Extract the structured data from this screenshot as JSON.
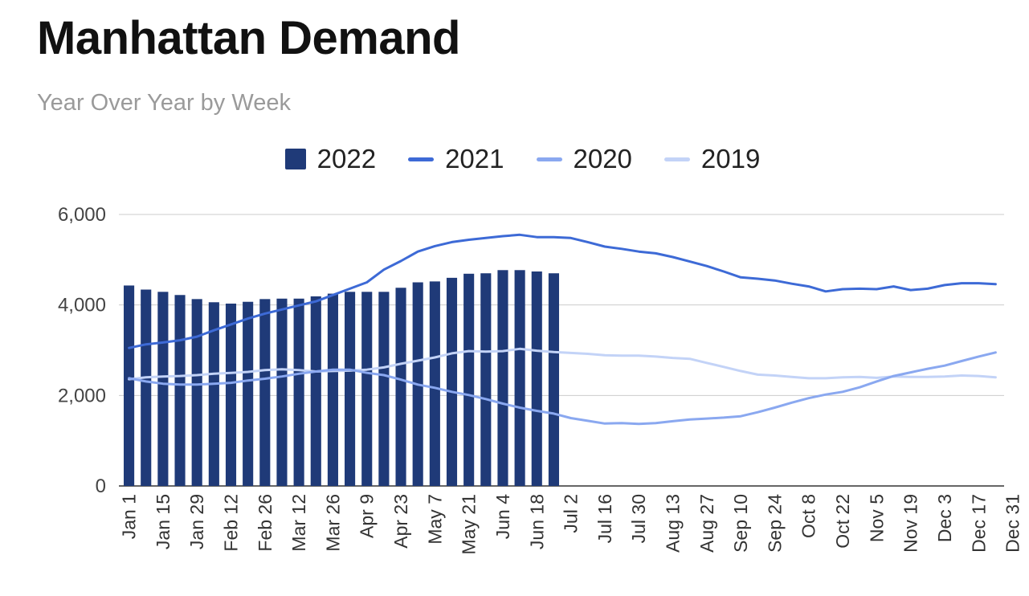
{
  "chart_data": {
    "type": "bar",
    "title": "Manhattan Demand",
    "subtitle": "Year Over Year by Week",
    "ylim": [
      0,
      6000
    ],
    "y_ticks": [
      "0",
      "2,000",
      "4,000",
      "6,000"
    ],
    "grid": true,
    "legend_position": "top-center",
    "tick_labels": [
      "Jan 1",
      "Jan 15",
      "Jan 29",
      "Feb 12",
      "Feb 26",
      "Mar 12",
      "Mar 26",
      "Apr 9",
      "Apr 23",
      "May 7",
      "May 21",
      "Jun 4",
      "Jun 18",
      "Jul 2",
      "Jul 16",
      "Jul 30",
      "Aug 13",
      "Aug 27",
      "Sep 10",
      "Sep 24",
      "Oct 8",
      "Oct 22",
      "Nov 5",
      "Nov 19",
      "Dec 3",
      "Dec 17",
      "Dec 31"
    ],
    "series": [
      {
        "name": "2022",
        "kind": "bar",
        "color": "#1f3a78",
        "values": [
          4430,
          4340,
          4290,
          4220,
          4130,
          4060,
          4030,
          4070,
          4130,
          4140,
          4140,
          4190,
          4250,
          4290,
          4290,
          4290,
          4380,
          4500,
          4520,
          4600,
          4690,
          4700,
          4770,
          4770,
          4740,
          4700
        ]
      },
      {
        "name": "2021",
        "kind": "line",
        "color": "#3d6ad6",
        "values": [
          3050,
          3130,
          3170,
          3220,
          3300,
          3440,
          3570,
          3700,
          3810,
          3900,
          3990,
          4080,
          4220,
          4360,
          4500,
          4780,
          4970,
          5180,
          5300,
          5390,
          5440,
          5480,
          5520,
          5550,
          5500,
          5500,
          5480,
          5390,
          5290,
          5240,
          5180,
          5140,
          5060,
          4960,
          4860,
          4740,
          4610,
          4580,
          4540,
          4470,
          4410,
          4300,
          4350,
          4360,
          4350,
          4410,
          4330,
          4360,
          4440,
          4480,
          4480,
          4460
        ]
      },
      {
        "name": "2020",
        "kind": "line",
        "color": "#8aa8f0",
        "values": [
          2380,
          2310,
          2260,
          2240,
          2240,
          2260,
          2280,
          2330,
          2370,
          2420,
          2480,
          2530,
          2570,
          2570,
          2500,
          2450,
          2350,
          2240,
          2170,
          2080,
          2010,
          1920,
          1820,
          1730,
          1660,
          1600,
          1500,
          1440,
          1380,
          1390,
          1370,
          1390,
          1430,
          1470,
          1490,
          1510,
          1540,
          1630,
          1730,
          1840,
          1940,
          2020,
          2080,
          2180,
          2310,
          2430,
          2510,
          2590,
          2660,
          2760,
          2860,
          2950
        ]
      },
      {
        "name": "2019",
        "kind": "line",
        "color": "#c3d3f7",
        "values": [
          2360,
          2400,
          2420,
          2430,
          2450,
          2480,
          2500,
          2520,
          2560,
          2580,
          2560,
          2530,
          2540,
          2550,
          2570,
          2620,
          2700,
          2770,
          2840,
          2930,
          2980,
          2970,
          2980,
          3030,
          2990,
          2960,
          2940,
          2920,
          2890,
          2880,
          2880,
          2860,
          2830,
          2810,
          2720,
          2630,
          2540,
          2460,
          2440,
          2410,
          2380,
          2380,
          2400,
          2410,
          2390,
          2420,
          2410,
          2410,
          2420,
          2440,
          2430,
          2400
        ]
      }
    ]
  }
}
